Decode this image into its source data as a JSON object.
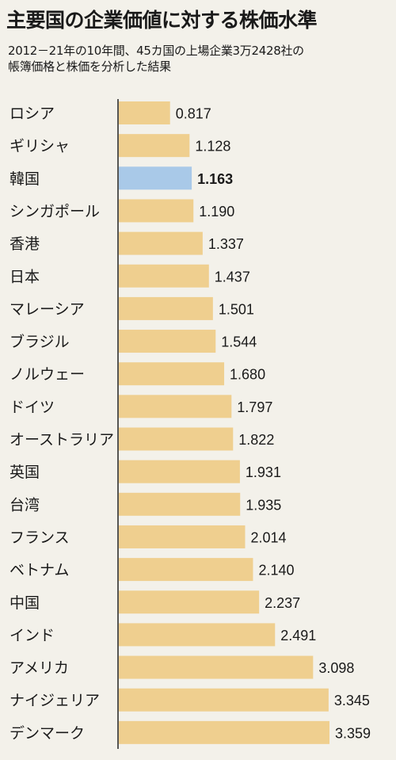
{
  "title": "主要国の企業価値に対する株価水準",
  "subtitle_lines": [
    "2012－21年の10年間、45カ国の上場企業3万2428社の",
    "帳簿価格と株価を分析した結果"
  ],
  "colors": {
    "bar": "#efcf8f",
    "highlight": "#a9c9e8",
    "axis": "#222222",
    "background": "#f3f1ea"
  },
  "chart_data": {
    "type": "bar",
    "orientation": "horizontal",
    "categories": [
      "ロシア",
      "ギリシャ",
      "韓国",
      "シンガポール",
      "香港",
      "日本",
      "マレーシア",
      "ブラジル",
      "ノルウェー",
      "ドイツ",
      "オーストラリア",
      "英国",
      "台湾",
      "フランス",
      "ベトナム",
      "中国",
      "インド",
      "アメリカ",
      "ナイジェリア",
      "デンマーク"
    ],
    "values": [
      0.817,
      1.128,
      1.163,
      1.19,
      1.337,
      1.437,
      1.501,
      1.544,
      1.68,
      1.797,
      1.822,
      1.931,
      1.935,
      2.014,
      2.14,
      2.237,
      2.491,
      3.098,
      3.345,
      3.359
    ],
    "value_labels": [
      "0.817",
      "1.128",
      "1.163",
      "1.190",
      "1.337",
      "1.437",
      "1.501",
      "1.544",
      "1.680",
      "1.797",
      "1.822",
      "1.931",
      "1.935",
      "2.014",
      "2.140",
      "2.237",
      "2.491",
      "3.098",
      "3.345",
      "3.359"
    ],
    "highlight_category": "韓国",
    "xlim": [
      0,
      3.5
    ],
    "grid": false,
    "legend": "none"
  }
}
